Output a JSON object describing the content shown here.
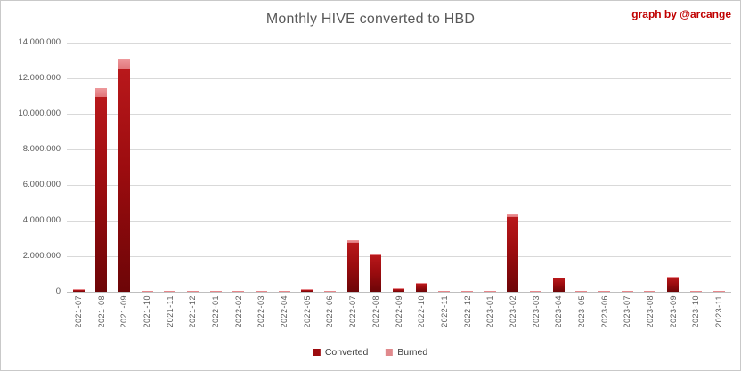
{
  "title": "Monthly HIVE converted to HBD",
  "credit": "graph by @arcange",
  "colors": {
    "converted": "#9c0b0e",
    "burned": "#e0898c",
    "credit_text": "#c00000",
    "axis_text": "#595959",
    "gridline": "#d9d9d9",
    "background": "#ffffff"
  },
  "chart_data": {
    "type": "bar",
    "stacked": true,
    "title": "Monthly HIVE converted to HBD",
    "xlabel": "",
    "ylabel": "",
    "ylim": [
      0,
      14000000
    ],
    "grid": true,
    "legend_position": "bottom",
    "y_ticks": [
      0,
      2000000,
      4000000,
      6000000,
      8000000,
      10000000,
      12000000,
      14000000
    ],
    "y_tick_labels": [
      "0",
      "2.000.000",
      "4.000.000",
      "6.000.000",
      "8.000.000",
      "10.000.000",
      "12.000.000",
      "14.000.000"
    ],
    "categories": [
      "2021-07",
      "2021-08",
      "2021-09",
      "2021-10",
      "2021-11",
      "2021-12",
      "2022-01",
      "2022-02",
      "2022-03",
      "2022-04",
      "2022-05",
      "2022-06",
      "2022-07",
      "2022-08",
      "2022-09",
      "2022-10",
      "2022-11",
      "2022-12",
      "2023-01",
      "2023-02",
      "2023-03",
      "2023-04",
      "2023-05",
      "2023-06",
      "2023-07",
      "2023-08",
      "2023-09",
      "2023-10",
      "2023-11"
    ],
    "series": [
      {
        "name": "Converted",
        "values": [
          120000,
          10950000,
          12500000,
          10000,
          10000,
          10000,
          10000,
          10000,
          10000,
          10000,
          90000,
          10000,
          2750000,
          2050000,
          150000,
          450000,
          10000,
          10000,
          10000,
          4200000,
          10000,
          750000,
          10000,
          10000,
          10000,
          10000,
          780000,
          10000,
          10000
        ]
      },
      {
        "name": "Burned",
        "values": [
          40000,
          500000,
          600000,
          40000,
          40000,
          40000,
          40000,
          40000,
          40000,
          40000,
          30000,
          40000,
          150000,
          100000,
          40000,
          50000,
          40000,
          40000,
          40000,
          150000,
          40000,
          60000,
          40000,
          40000,
          40000,
          40000,
          50000,
          40000,
          40000
        ]
      }
    ]
  }
}
